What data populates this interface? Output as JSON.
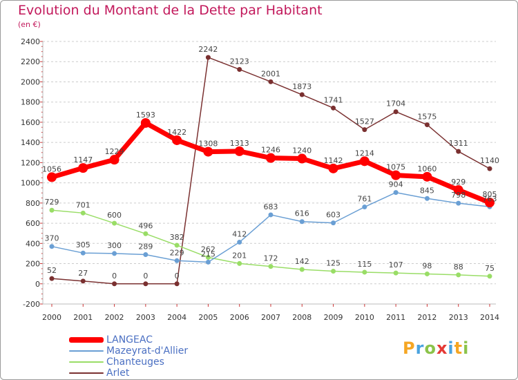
{
  "title": "Evolution du Montant de la Dette par Habitant",
  "subtitle": "(en €)",
  "logo": {
    "letters": [
      {
        "ch": "P",
        "color": "#f5a623"
      },
      {
        "ch": "r",
        "color": "#4aa3df"
      },
      {
        "ch": "o",
        "color": "#8bc34a"
      },
      {
        "ch": "x",
        "color": "#e53935"
      },
      {
        "ch": "i",
        "color": "#4aa3df"
      },
      {
        "ch": "t",
        "color": "#f5a623"
      },
      {
        "ch": "i",
        "color": "#8bc34a"
      }
    ]
  },
  "chart_data": {
    "type": "line",
    "title": "Evolution du Montant de la Dette par Habitant",
    "ylabel": "(en €)",
    "xlabel": "",
    "x": [
      "2000",
      "2001",
      "2002",
      "2003",
      "2004",
      "2005",
      "2006",
      "2007",
      "2008",
      "2009",
      "2010",
      "2011",
      "2012",
      "2013",
      "2014"
    ],
    "ylim": [
      -200,
      2400
    ],
    "yticks": [
      "-200",
      "0",
      "200",
      "400",
      "600",
      "800",
      "1000",
      "1200",
      "1400",
      "1600",
      "1800",
      "2000",
      "2200",
      "2400"
    ],
    "grid": "horizontal dashed",
    "legend": "bottom-left",
    "series": [
      {
        "name": "LANGEAC",
        "color": "#ff0000",
        "values": [
          1056,
          1147,
          1229,
          1593,
          1422,
          1308,
          1313,
          1246,
          1240,
          1142,
          1214,
          1075,
          1060,
          929,
          805
        ],
        "labels": [
          "1056",
          "1147",
          "1229",
          "1593",
          "1422",
          "1308",
          "1313",
          "1246",
          "1240",
          "1142",
          "1214",
          "1075",
          "1060",
          "929",
          "805"
        ]
      },
      {
        "name": "Mazeyrat-d'Allier",
        "color": "#6a9fd4",
        "values": [
          370,
          305,
          300,
          289,
          229,
          215,
          412,
          683,
          616,
          603,
          761,
          904,
          845,
          798,
          763
        ],
        "labels": [
          "370",
          "305",
          "300",
          "289",
          "229",
          "215",
          "412",
          "683",
          "616",
          "603",
          "761",
          "904",
          "845",
          "798",
          "763"
        ]
      },
      {
        "name": "Chanteuges",
        "color": "#99dd66",
        "values": [
          729,
          701,
          600,
          496,
          382,
          262,
          201,
          172,
          142,
          125,
          115,
          107,
          98,
          88,
          75
        ],
        "labels": [
          "729",
          "701",
          "600",
          "496",
          "382",
          "262",
          "201",
          "172",
          "142",
          "125",
          "115",
          "107",
          "98",
          "88",
          "75"
        ]
      },
      {
        "name": "Arlet",
        "color": "#7a3030",
        "values": [
          52,
          27,
          0,
          0,
          0,
          2242,
          2123,
          2001,
          1873,
          1741,
          1527,
          1704,
          1575,
          1311,
          1140
        ],
        "labels": [
          "52",
          "27",
          "0",
          "0",
          "0",
          "2242",
          "2123",
          "2001",
          "1873",
          "1741",
          "1527",
          "1704",
          "1575",
          "1311",
          "1140"
        ]
      }
    ]
  }
}
